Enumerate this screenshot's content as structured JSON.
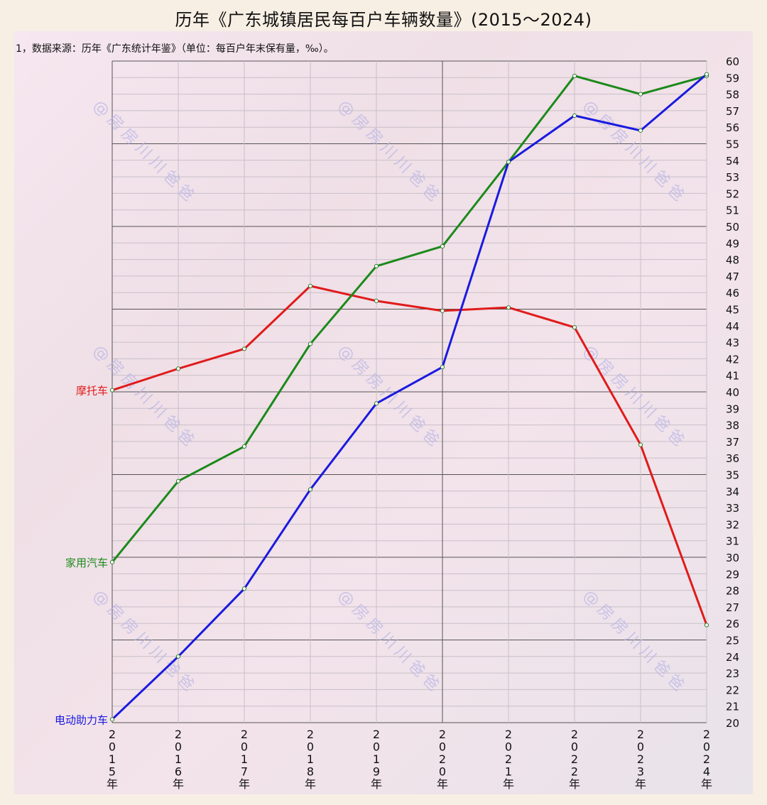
{
  "title": "历年《广东城镇居民每百户车辆数量》(2015～2024)",
  "subtitle": "1，数据来源：历年《广东统计年鉴》（单位：每百户年末保有量，‰）。",
  "watermark": "@房房川川爸爸",
  "colors": {
    "motorcycle": "#e01b1b",
    "car": "#1a8a1a",
    "ebike": "#1a1ae0",
    "grid_major": "#555555",
    "grid_minor": "#c9c0c8"
  },
  "chart_data": {
    "type": "line",
    "title": "历年《广东城镇居民每百户车辆数量》(2015～2024)",
    "subtitle": "1，数据来源：历年《广东统计年鉴》（单位：每百户年末保有量，‰）。",
    "xlabel": "",
    "ylabel": "",
    "x": [
      "2015年",
      "2016年",
      "2017年",
      "2018年",
      "2019年",
      "2020年",
      "2021年",
      "2022年",
      "2023年",
      "2024年"
    ],
    "ylim": [
      20,
      60
    ],
    "yticks": [
      20,
      21,
      22,
      23,
      24,
      25,
      26,
      27,
      28,
      29,
      30,
      31,
      32,
      33,
      34,
      35,
      36,
      37,
      38,
      39,
      40,
      41,
      42,
      43,
      44,
      45,
      46,
      47,
      48,
      49,
      50,
      51,
      52,
      53,
      54,
      55,
      56,
      57,
      58,
      59,
      60
    ],
    "y_axis_position": "right",
    "grid": true,
    "legend_position": "inline-left",
    "series": [
      {
        "name": "摩托车",
        "color": "#e01b1b",
        "values": [
          40.1,
          41.4,
          42.6,
          46.4,
          45.5,
          44.9,
          45.1,
          43.9,
          36.8,
          25.9
        ]
      },
      {
        "name": "家用汽车",
        "color": "#1a8a1a",
        "values": [
          29.7,
          34.6,
          36.7,
          42.9,
          47.6,
          48.8,
          53.9,
          59.1,
          58.0,
          59.1
        ]
      },
      {
        "name": "电动助力车",
        "color": "#1a1ae0",
        "values": [
          20.2,
          24.0,
          28.1,
          34.1,
          39.3,
          41.5,
          53.9,
          56.7,
          55.8,
          59.2
        ]
      }
    ]
  }
}
